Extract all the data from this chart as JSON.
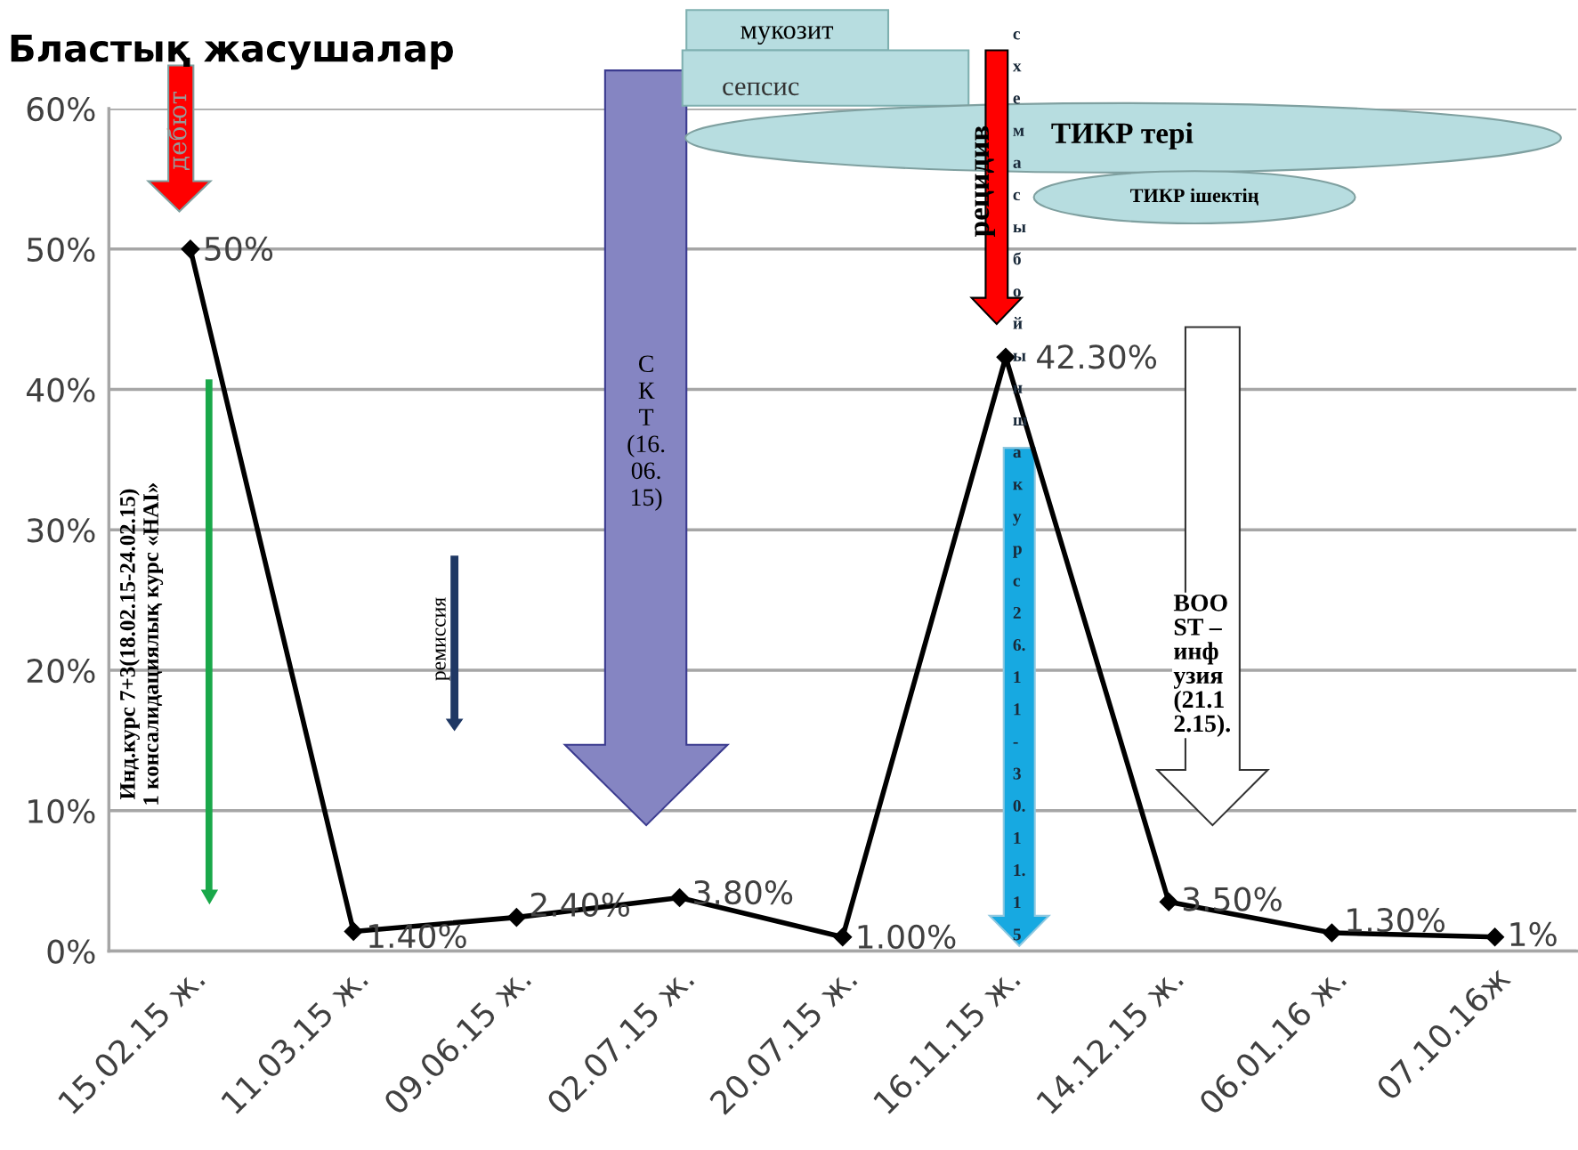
{
  "chart_data": {
    "type": "line",
    "title": "Бластық жасушалар",
    "categories": [
      "15.02.15 ж.",
      "11.03.15 ж.",
      "09.06.15 ж.",
      "02.07.15 ж.",
      "20.07.15 ж.",
      "16.11.15 ж.",
      "14.12.15 ж.",
      "06.01.16 ж.",
      "07.10.16ж"
    ],
    "series": [
      {
        "color": "#000000",
        "values": [
          50,
          1.4,
          2.4,
          3.8,
          1.0,
          42.3,
          3.5,
          1.3,
          1
        ],
        "value_labels": [
          "50%",
          "1.40%",
          "2.40%",
          "3.80%",
          "1.00%",
          "42.30%",
          "3.50%",
          "1.30%",
          "1%"
        ]
      }
    ],
    "ylim": [
      0,
      60
    ],
    "yticks": [
      {
        "value": 0,
        "label": "0%"
      },
      {
        "value": 10,
        "label": "10%"
      },
      {
        "value": 20,
        "label": "20%"
      },
      {
        "value": 30,
        "label": "30%"
      },
      {
        "value": 40,
        "label": "40%"
      },
      {
        "value": 50,
        "label": "50%"
      },
      {
        "value": 60,
        "label": "60%"
      }
    ],
    "grid": "y",
    "marker": "diamond",
    "line_style": "solid",
    "annotations": [
      "дебют",
      "Инд.курс 7+3(18.02.15-24.02.15)\n1 консалидациялық курс «HAI»",
      "ремиссия",
      "С\nК\nТ\n(16.\n06.\n15)",
      "мукозит",
      "сепсис",
      "ТИКР тері",
      "ТИКР ішектің",
      "рецидив",
      "схемасы бойынша курс 26.11-30.11.15",
      "BOO\nST –\nинф\nузия\n(21.1\n2.15)."
    ]
  }
}
